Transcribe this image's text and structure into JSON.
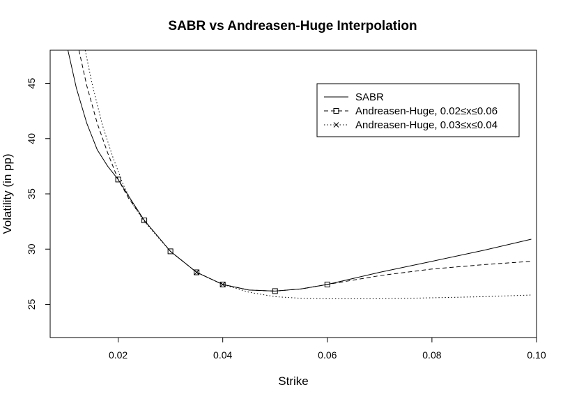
{
  "chart_data": {
    "type": "line",
    "title": "SABR vs Andreasen-Huge Interpolation",
    "xlabel": "Strike",
    "ylabel": "Volatility (in pp)",
    "xlim": [
      0.007,
      0.1
    ],
    "ylim": [
      22,
      48
    ],
    "x_ticks": [
      0.02,
      0.04,
      0.06,
      0.08,
      0.1
    ],
    "x_tick_labels": [
      "0.02",
      "0.04",
      "0.06",
      "0.08",
      "0.10"
    ],
    "y_ticks": [
      25,
      30,
      35,
      40,
      45
    ],
    "y_tick_labels": [
      "25",
      "30",
      "35",
      "40",
      "45"
    ],
    "legend_position": "top-right",
    "grid": false,
    "series": [
      {
        "name": "SABR",
        "line_style": "solid",
        "marker": "none",
        "x": [
          0.0104,
          0.012,
          0.014,
          0.016,
          0.018,
          0.02,
          0.022,
          0.025,
          0.03,
          0.035,
          0.04,
          0.045,
          0.05,
          0.055,
          0.06,
          0.07,
          0.08,
          0.09,
          0.099
        ],
        "y": [
          48.0,
          44.6,
          41.4,
          39.0,
          37.5,
          36.3,
          34.8,
          32.6,
          29.8,
          27.9,
          26.8,
          26.3,
          26.2,
          26.4,
          26.8,
          27.9,
          28.9,
          29.9,
          30.9
        ]
      },
      {
        "name": "Andreasen-Huge, 0.02≤x≤0.06",
        "line_style": "dashed",
        "marker": "square",
        "x": [
          0.0125,
          0.014,
          0.016,
          0.018,
          0.02,
          0.022,
          0.025,
          0.03,
          0.035,
          0.04,
          0.045,
          0.05,
          0.055,
          0.06,
          0.07,
          0.08,
          0.09,
          0.099
        ],
        "y": [
          48.0,
          44.8,
          41.4,
          38.7,
          36.3,
          34.6,
          32.6,
          29.8,
          27.9,
          26.8,
          26.3,
          26.2,
          26.4,
          26.8,
          27.6,
          28.2,
          28.6,
          28.9
        ],
        "marker_x": [
          0.02,
          0.025,
          0.03,
          0.035,
          0.04,
          0.05,
          0.06
        ],
        "marker_y": [
          36.3,
          32.6,
          29.8,
          27.9,
          26.8,
          26.2,
          26.8
        ]
      },
      {
        "name": "Andreasen-Huge, 0.03≤x≤0.04",
        "line_style": "dotted",
        "marker": "cross",
        "x": [
          0.0137,
          0.015,
          0.017,
          0.019,
          0.021,
          0.023,
          0.025,
          0.03,
          0.035,
          0.04,
          0.045,
          0.05,
          0.055,
          0.06,
          0.065,
          0.07,
          0.08,
          0.09,
          0.099
        ],
        "y": [
          48.0,
          45.0,
          41.2,
          38.3,
          35.8,
          33.9,
          32.5,
          29.8,
          27.9,
          26.8,
          26.1,
          25.7,
          25.55,
          25.5,
          25.5,
          25.5,
          25.6,
          25.7,
          25.85
        ],
        "marker_x": [
          0.035,
          0.04
        ],
        "marker_y": [
          27.9,
          26.8
        ]
      }
    ]
  }
}
